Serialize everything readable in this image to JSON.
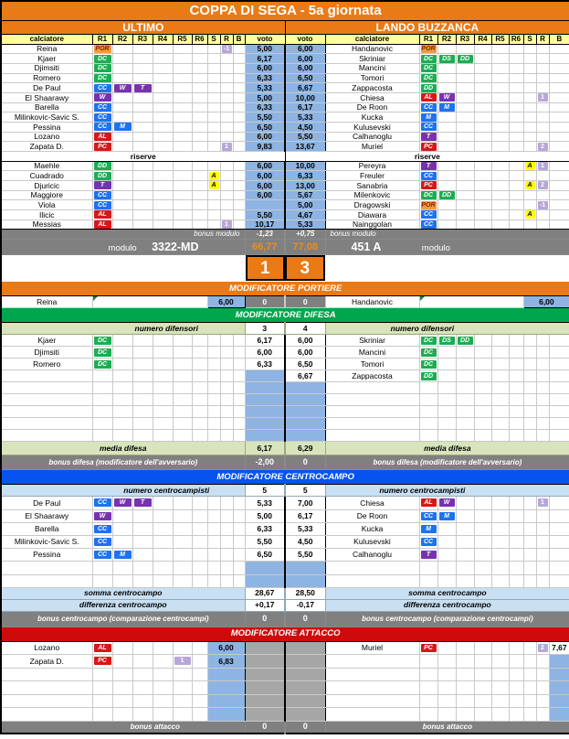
{
  "title": "COPPA DI SEGA - 5a giornata",
  "labels": {
    "riserve": "riserve",
    "bonus_modulo": "bonus modulo",
    "modulo": "modulo"
  },
  "columns": {
    "left": [
      "calciatore",
      "R1",
      "R2",
      "R3",
      "R4",
      "R5",
      "R6",
      "S",
      "R",
      "B",
      "voto"
    ],
    "right": [
      "voto",
      "calciatore",
      "R1",
      "R2",
      "R3",
      "R4",
      "R5",
      "R6",
      "S",
      "R",
      "B"
    ]
  },
  "left": {
    "team": "ULTIMO",
    "players": [
      {
        "name": "Reina",
        "badges": [
          "POR"
        ],
        "r": "-1",
        "voto": "5,00"
      },
      {
        "name": "Kjaer",
        "badges": [
          "DC"
        ],
        "voto": "6,17"
      },
      {
        "name": "Djimsiti",
        "badges": [
          "DC"
        ],
        "voto": "6,00"
      },
      {
        "name": "Romero",
        "badges": [
          "DC"
        ],
        "voto": "6,33"
      },
      {
        "name": "De Paul",
        "badges": [
          "CC",
          "W",
          "T"
        ],
        "voto": "5,33"
      },
      {
        "name": "El Shaarawy",
        "badges": [
          "W"
        ],
        "voto": "5,00"
      },
      {
        "name": "Barella",
        "badges": [
          "CC"
        ],
        "voto": "6,33"
      },
      {
        "name": "Milinkovic-Savic S.",
        "badges": [
          "CC"
        ],
        "voto": "5,50"
      },
      {
        "name": "Pessina",
        "badges": [
          "CC",
          "M"
        ],
        "voto": "6,50"
      },
      {
        "name": "Lozano",
        "badges": [
          "AL"
        ],
        "voto": "6,00"
      },
      {
        "name": "Zapata D.",
        "badges": [
          "PC"
        ],
        "r": "1",
        "voto": "9,83"
      }
    ],
    "reserves": [
      {
        "name": "Maehle",
        "badges": [
          "DD"
        ],
        "voto": "6,00"
      },
      {
        "name": "Cuadrado",
        "badges": [
          "DD"
        ],
        "s": "A",
        "voto": "6,00"
      },
      {
        "name": "Djuricic",
        "badges": [
          "T"
        ],
        "s": "A",
        "voto": "6,00"
      },
      {
        "name": "Maggiore",
        "badges": [
          "CC"
        ],
        "voto": "6,00"
      },
      {
        "name": "Viola",
        "badges": [
          "CC"
        ],
        "voto": ""
      },
      {
        "name": "Ilicic",
        "badges": [
          "AL"
        ],
        "voto": "5,50"
      },
      {
        "name": "Messias",
        "badges": [
          "AL"
        ],
        "r": "1",
        "voto": "10,17"
      }
    ],
    "bonus_modulo": "-1,23",
    "modulo": "3322-MD",
    "totale": "66,77",
    "score": "1"
  },
  "right": {
    "team": "LANDO BUZZANCA",
    "players": [
      {
        "voto": "6,00",
        "name": "Handanovic",
        "badges": [
          "POR"
        ]
      },
      {
        "voto": "6,00",
        "name": "Skriniar",
        "badges": [
          "DC",
          "DS",
          "DD"
        ]
      },
      {
        "voto": "6,00",
        "name": "Mancini",
        "badges": [
          "DC"
        ]
      },
      {
        "voto": "6,50",
        "name": "Tomori",
        "badges": [
          "DC"
        ]
      },
      {
        "voto": "6,67",
        "name": "Zappacosta",
        "badges": [
          "DD"
        ]
      },
      {
        "voto": "10,00",
        "name": "Chiesa",
        "badges": [
          "AL",
          "W"
        ],
        "r": "1"
      },
      {
        "voto": "6,17",
        "name": "De Roon",
        "badges": [
          "CC",
          "M"
        ]
      },
      {
        "voto": "5,33",
        "name": "Kucka",
        "badges": [
          "M"
        ]
      },
      {
        "voto": "4,50",
        "name": "Kulusevski",
        "badges": [
          "CC"
        ]
      },
      {
        "voto": "5,50",
        "name": "Calhanoglu",
        "badges": [
          "T"
        ]
      },
      {
        "voto": "13,67",
        "name": "Muriel",
        "badges": [
          "PC"
        ],
        "r": "2"
      }
    ],
    "reserves": [
      {
        "voto": "10,00",
        "name": "Pereyra",
        "badges": [
          "T"
        ],
        "s": "A",
        "r": "1"
      },
      {
        "voto": "6,33",
        "name": "Freuler",
        "badges": [
          "CC"
        ]
      },
      {
        "voto": "13,00",
        "name": "Sanabria",
        "badges": [
          "PC"
        ],
        "s": "A",
        "r": "2"
      },
      {
        "voto": "5,67",
        "name": "Milenkovic",
        "badges": [
          "DC",
          "DD"
        ]
      },
      {
        "voto": "5,00",
        "name": "Dragowski",
        "badges": [
          "POR"
        ],
        "r": "-1"
      },
      {
        "voto": "4,67",
        "name": "Diawara",
        "badges": [
          "CC"
        ],
        "s": "A"
      },
      {
        "voto": "5,33",
        "name": "Nainggolan",
        "badges": [
          "CC"
        ]
      }
    ],
    "bonus_modulo": "+0,75",
    "modulo": "451 A",
    "totale": "77,08",
    "score": "3"
  },
  "sections": {
    "portiere": {
      "title": "MODIFICATORE PORTIERE",
      "left_name": "Reina",
      "left_voto": "6,00",
      "left_bonus": "0",
      "right_name": "Handanovic",
      "right_voto": "6,00",
      "right_bonus": "0"
    },
    "difesa": {
      "title": "MODIFICATORE DIFESA",
      "numero_label": "numero difensori",
      "numero_left": "3",
      "numero_right": "4",
      "rows": [
        {
          "left": {
            "name": "Kjaer",
            "badges": [
              "DC"
            ]
          },
          "left_voto": "6,17",
          "right_voto": "6,00",
          "right": {
            "name": "Skriniar",
            "badges": [
              "DC",
              "DS",
              "DD"
            ]
          }
        },
        {
          "left": {
            "name": "Djimsiti",
            "badges": [
              "DC"
            ]
          },
          "left_voto": "6,00",
          "right_voto": "6,00",
          "right": {
            "name": "Mancini",
            "badges": [
              "DC"
            ]
          }
        },
        {
          "left": {
            "name": "Romero",
            "badges": [
              "DC"
            ]
          },
          "left_voto": "6,33",
          "right_voto": "6,50",
          "right": {
            "name": "Tomori",
            "badges": [
              "DC"
            ]
          }
        },
        {
          "left": null,
          "left_voto": "",
          "right_voto": "6,67",
          "right": {
            "name": "Zappacosta",
            "badges": [
              "DD"
            ]
          }
        }
      ],
      "empty_rows": 5,
      "media_label": "media difesa",
      "media_left": "6,17",
      "media_right": "6,29",
      "bonus_label": "bonus difesa (modificatore dell'avversario)",
      "bonus_left": "-2,00",
      "bonus_right": "0"
    },
    "centrocampo": {
      "title": "MODIFICATORE CENTROCAMPO",
      "numero_label": "numero centrocampisti",
      "numero_left": "5",
      "numero_right": "5",
      "rows": [
        {
          "left": {
            "name": "De Paul",
            "badges": [
              "CC",
              "W",
              "T"
            ]
          },
          "left_voto": "5,33",
          "right_voto": "7,00",
          "right": {
            "name": "Chiesa",
            "badges": [
              "AL",
              "W"
            ],
            "r": "1"
          }
        },
        {
          "left": {
            "name": "El Shaarawy",
            "badges": [
              "W"
            ]
          },
          "left_voto": "5,00",
          "right_voto": "6,17",
          "right": {
            "name": "De Roon",
            "badges": [
              "CC",
              "M"
            ]
          }
        },
        {
          "left": {
            "name": "Barella",
            "badges": [
              "CC"
            ]
          },
          "left_voto": "6,33",
          "right_voto": "5,33",
          "right": {
            "name": "Kucka",
            "badges": [
              "M"
            ]
          }
        },
        {
          "left": {
            "name": "Milinkovic-Savic S.",
            "badges": [
              "CC"
            ]
          },
          "left_voto": "5,50",
          "right_voto": "4,50",
          "right": {
            "name": "Kulusevski",
            "badges": [
              "CC"
            ]
          }
        },
        {
          "left": {
            "name": "Pessina",
            "badges": [
              "CC",
              "M"
            ]
          },
          "left_voto": "6,50",
          "right_voto": "5,50",
          "right": {
            "name": "Calhanoglu",
            "badges": [
              "T"
            ]
          }
        }
      ],
      "empty_rows": 2,
      "somma_label": "somma centrocampo",
      "somma_left": "28,67",
      "somma_right": "28,50",
      "diff_label": "differenza centrocampo",
      "diff_left": "+0,17",
      "diff_right": "-0,17",
      "bonus_label": "bonus centrocampo (comparazione centrocampi)",
      "bonus_left": "0",
      "bonus_right": "0"
    },
    "attacco": {
      "title": "MODIFICATORE ATTACCO",
      "rows": [
        {
          "left": {
            "name": "Lozano",
            "badges": [
              "AL"
            ]
          },
          "left_voto": "6,00",
          "right": {
            "name": "Muriel",
            "badges": [
              "PC"
            ],
            "r": "2"
          },
          "right_voto": "7,67"
        },
        {
          "left": {
            "name": "Zapata D.",
            "badges": [
              "PC"
            ],
            "r": "1"
          },
          "left_voto": "6,83",
          "right": null,
          "right_voto": ""
        }
      ],
      "empty_rows": 4,
      "bonus_label": "bonus attacco",
      "bonus_left": "0",
      "bonus_right": "0"
    }
  },
  "colors": {
    "orange": "#E97A16",
    "green_banner": "#00A64E",
    "blue_banner": "#0653F0",
    "red_banner": "#CE0B0B",
    "gray": "#808080",
    "bar_gray": "#A6A6A6",
    "voto_fill": "#8DB4E2",
    "light_green": "#D7E4BC",
    "light_blue": "#C9E0F2",
    "pale_yellow": "#FFFF9C",
    "black_box": "#000000",
    "role_por": "#F09A42",
    "role_dif": "#1CAD52",
    "role_cen": "#1D72F0",
    "role_tre": "#7733AE",
    "role_att": "#D81717",
    "sub_yellow": "#FFFF00",
    "num_lilac": "#B7A7D8",
    "comment_green": "#15803D"
  }
}
